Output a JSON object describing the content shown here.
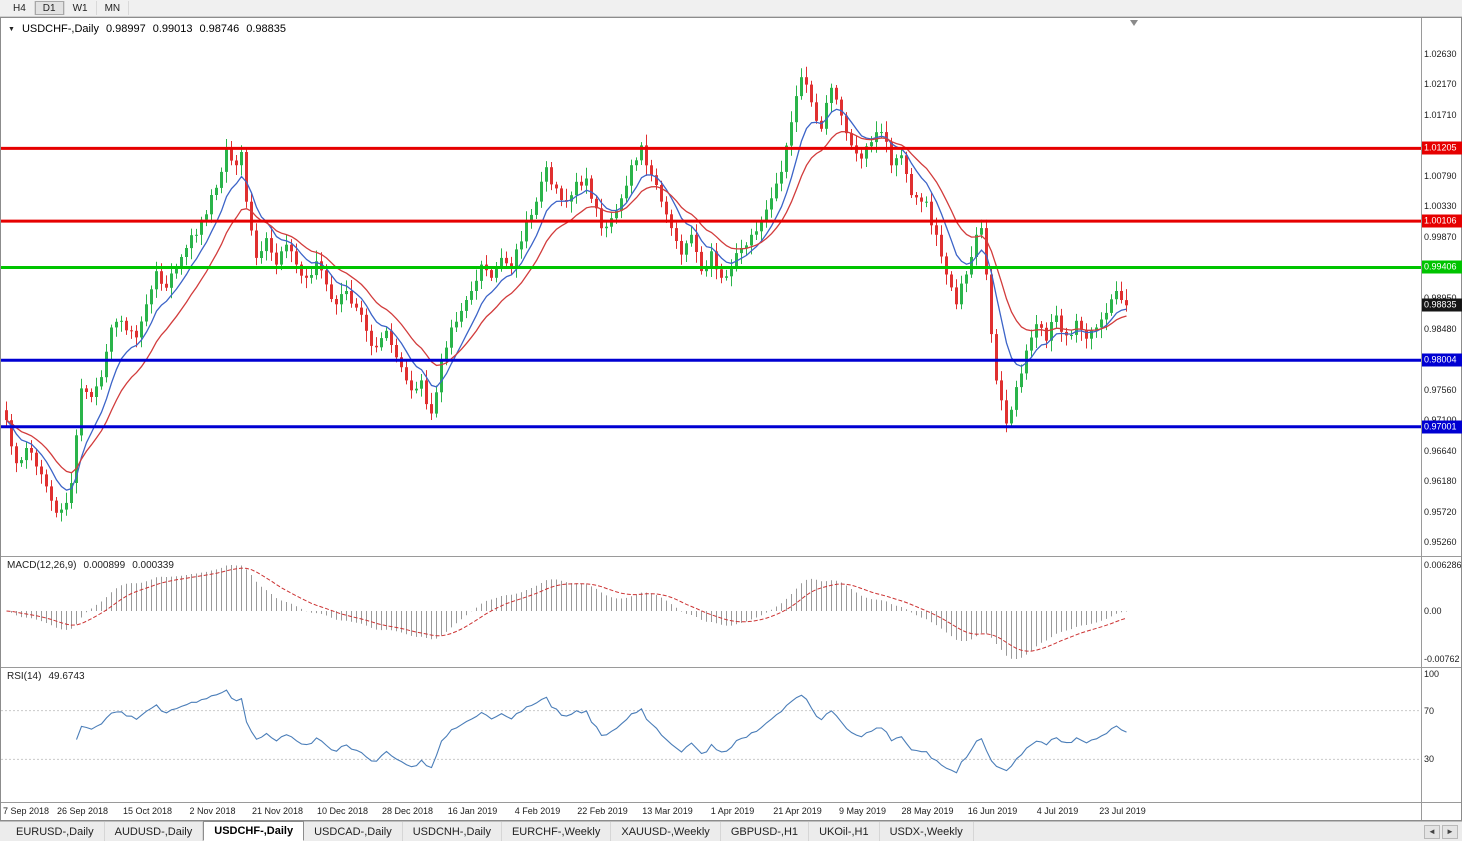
{
  "icons": {
    "collapse": "▼",
    "tab_scroll_left": "◄",
    "tab_scroll_right": "►"
  },
  "toolbar": {
    "timeframes": [
      {
        "label": "H4",
        "active": false
      },
      {
        "label": "D1",
        "active": true
      },
      {
        "label": "W1",
        "active": false
      },
      {
        "label": "MN",
        "active": false
      }
    ]
  },
  "chart": {
    "title": {
      "symbol": "USDCHF-,Daily",
      "open": "0.98997",
      "high": "0.99013",
      "low": "0.98746",
      "close": "0.98835"
    },
    "macd": {
      "label": "MACD(12,26,9)",
      "main_value": "0.000899",
      "signal_value": "0.000339",
      "axis_labels": {
        "top": "0.006286",
        "zero": "0.00",
        "bottom": "-0.00762"
      }
    },
    "rsi": {
      "label": "RSI(14)",
      "value": "49.6743",
      "levels": [
        "100",
        "70",
        "30"
      ]
    }
  },
  "chart_data": {
    "type": "candlestick",
    "symbol": "USDCHF-",
    "timeframe": "Daily",
    "bar_count": 225,
    "current_price": 0.98835,
    "current_price_label": "0.98835",
    "y_axis": {
      "min": 0.9526,
      "max": 1.0263,
      "ticks": [
        "1.02630",
        "1.02170",
        "1.01710",
        "1.01250",
        "1.00790",
        "1.00330",
        "0.99870",
        "0.99410",
        "0.98950",
        "0.98480",
        "0.98020",
        "0.97560",
        "0.97100",
        "0.96640",
        "0.96180",
        "0.95720",
        "0.95260"
      ]
    },
    "x_labels": [
      "7 Sep 2018",
      "26 Sep 2018",
      "15 Oct 2018",
      "2 Nov 2018",
      "21 Nov 2018",
      "10 Dec 2018",
      "28 Dec 2018",
      "16 Jan 2019",
      "4 Feb 2019",
      "22 Feb 2019",
      "13 Mar 2019",
      "1 Apr 2019",
      "21 Apr 2019",
      "9 May 2019",
      "28 May 2019",
      "16 Jun 2019",
      "4 Jul 2019",
      "23 Jul 2019"
    ],
    "x_label_first_bar": 2,
    "x_label_step_bars": 13,
    "hlines": [
      {
        "price": 1.01205,
        "label": "1.01205",
        "color": "#e60000"
      },
      {
        "price": 1.00106,
        "label": "1.00106",
        "color": "#e60000"
      },
      {
        "price": 0.99406,
        "label": "0.99406",
        "color": "#00c400"
      },
      {
        "price": 0.98004,
        "label": "0.98004",
        "color": "#0000d2"
      },
      {
        "price": 0.97001,
        "label": "0.97001",
        "color": "#0000d2"
      }
    ],
    "colors": {
      "up": "#2ab44a",
      "down": "#e03030",
      "ma_fast": "#3c64c8",
      "ma_slow": "#d23c3c",
      "macd_hist": "#9a9a9a",
      "macd_signal": "#cc3333",
      "rsi": "#4a7db8",
      "current_tag": "#151515"
    },
    "ma_periods": {
      "fast": 8,
      "slow": 16
    },
    "macd_params": [
      12,
      26,
      9
    ],
    "rsi_period": 14,
    "price_path": [
      [
        0,
        0.971
      ],
      [
        2,
        0.9645
      ],
      [
        4,
        0.9668
      ],
      [
        6,
        0.964
      ],
      [
        8,
        0.961
      ],
      [
        10,
        0.957
      ],
      [
        12,
        0.9585
      ],
      [
        13,
        0.9615
      ],
      [
        15,
        0.9758
      ],
      [
        17,
        0.9745
      ],
      [
        19,
        0.9775
      ],
      [
        21,
        0.985
      ],
      [
        23,
        0.986
      ],
      [
        25,
        0.9845
      ],
      [
        26,
        0.9835
      ],
      [
        28,
        0.9885
      ],
      [
        30,
        0.9935
      ],
      [
        32,
        0.991
      ],
      [
        34,
        0.994
      ],
      [
        36,
        0.997
      ],
      [
        38,
        0.999
      ],
      [
        41,
        1.005
      ],
      [
        43,
        1.0085
      ],
      [
        44,
        1.0122
      ],
      [
        46,
        1.0095
      ],
      [
        47,
        1.0115
      ],
      [
        48,
        1.004
      ],
      [
        50,
        0.9955
      ],
      [
        52,
        0.9985
      ],
      [
        54,
        0.9945
      ],
      [
        56,
        0.9975
      ],
      [
        58,
        0.9945
      ],
      [
        60,
        0.9925
      ],
      [
        62,
        0.995
      ],
      [
        64,
        0.9915
      ],
      [
        66,
        0.9885
      ],
      [
        68,
        0.9905
      ],
      [
        70,
        0.988
      ],
      [
        72,
        0.9845
      ],
      [
        74,
        0.982
      ],
      [
        76,
        0.9845
      ],
      [
        78,
        0.9805
      ],
      [
        79,
        0.979
      ],
      [
        81,
        0.9755
      ],
      [
        83,
        0.977
      ],
      [
        85,
        0.972
      ],
      [
        87,
        0.98
      ],
      [
        89,
        0.985
      ],
      [
        91,
        0.9875
      ],
      [
        93,
        0.9905
      ],
      [
        95,
        0.9945
      ],
      [
        97,
        0.9925
      ],
      [
        99,
        0.9955
      ],
      [
        101,
        0.994
      ],
      [
        103,
        0.998
      ],
      [
        105,
        1.002
      ],
      [
        106,
        1.004
      ],
      [
        108,
        1.0092
      ],
      [
        110,
        1.006
      ],
      [
        112,
        1.004
      ],
      [
        114,
        1.007
      ],
      [
        116,
        1.0075
      ],
      [
        118,
        1.003
      ],
      [
        119,
        1.0
      ],
      [
        121,
        1.0015
      ],
      [
        123,
        1.0045
      ],
      [
        125,
        1.0095
      ],
      [
        127,
        1.0125
      ],
      [
        129,
        1.008
      ],
      [
        131,
        1.004
      ],
      [
        133,
        1.0
      ],
      [
        135,
        0.996
      ],
      [
        137,
        0.999
      ],
      [
        139,
        0.9935
      ],
      [
        141,
        0.9965
      ],
      [
        143,
        0.9925
      ],
      [
        145,
        0.994
      ],
      [
        147,
        0.997
      ],
      [
        149,
        0.999
      ],
      [
        151,
        1.001
      ],
      [
        153,
        1.0045
      ],
      [
        155,
        1.0085
      ],
      [
        157,
        1.016
      ],
      [
        159,
        1.0228
      ],
      [
        161,
        1.019
      ],
      [
        163,
        1.015
      ],
      [
        165,
        1.0212
      ],
      [
        167,
        1.017
      ],
      [
        169,
        1.0125
      ],
      [
        171,
        1.0105
      ],
      [
        173,
        1.013
      ],
      [
        175,
        1.0145
      ],
      [
        177,
        1.0095
      ],
      [
        179,
        1.011
      ],
      [
        181,
        1.005
      ],
      [
        184,
        1.004
      ],
      [
        186,
        0.999
      ],
      [
        188,
        0.993
      ],
      [
        190,
        0.9885
      ],
      [
        192,
        0.993
      ],
      [
        194,
        0.999
      ],
      [
        195,
        1.0
      ],
      [
        196,
        0.993
      ],
      [
        197,
        0.984
      ],
      [
        198,
        0.977
      ],
      [
        200,
        0.9705
      ],
      [
        202,
        0.976
      ],
      [
        204,
        0.9815
      ],
      [
        206,
        0.9855
      ],
      [
        208,
        0.983
      ],
      [
        210,
        0.9868
      ],
      [
        212,
        0.9838
      ],
      [
        214,
        0.986
      ],
      [
        216,
        0.9833
      ],
      [
        218,
        0.985
      ],
      [
        220,
        0.9872
      ],
      [
        222,
        0.9905
      ],
      [
        224,
        0.98835
      ]
    ]
  },
  "tabs": {
    "items": [
      "EURUSD-,Daily",
      "AUDUSD-,Daily",
      "USDCHF-,Daily",
      "USDCAD-,Daily",
      "USDCNH-,Daily",
      "EURCHF-,Weekly",
      "XAUUSD-,Weekly",
      "GBPUSD-,H1",
      "UKOil-,H1",
      "USDX-,Weekly"
    ],
    "active_index": 2
  }
}
